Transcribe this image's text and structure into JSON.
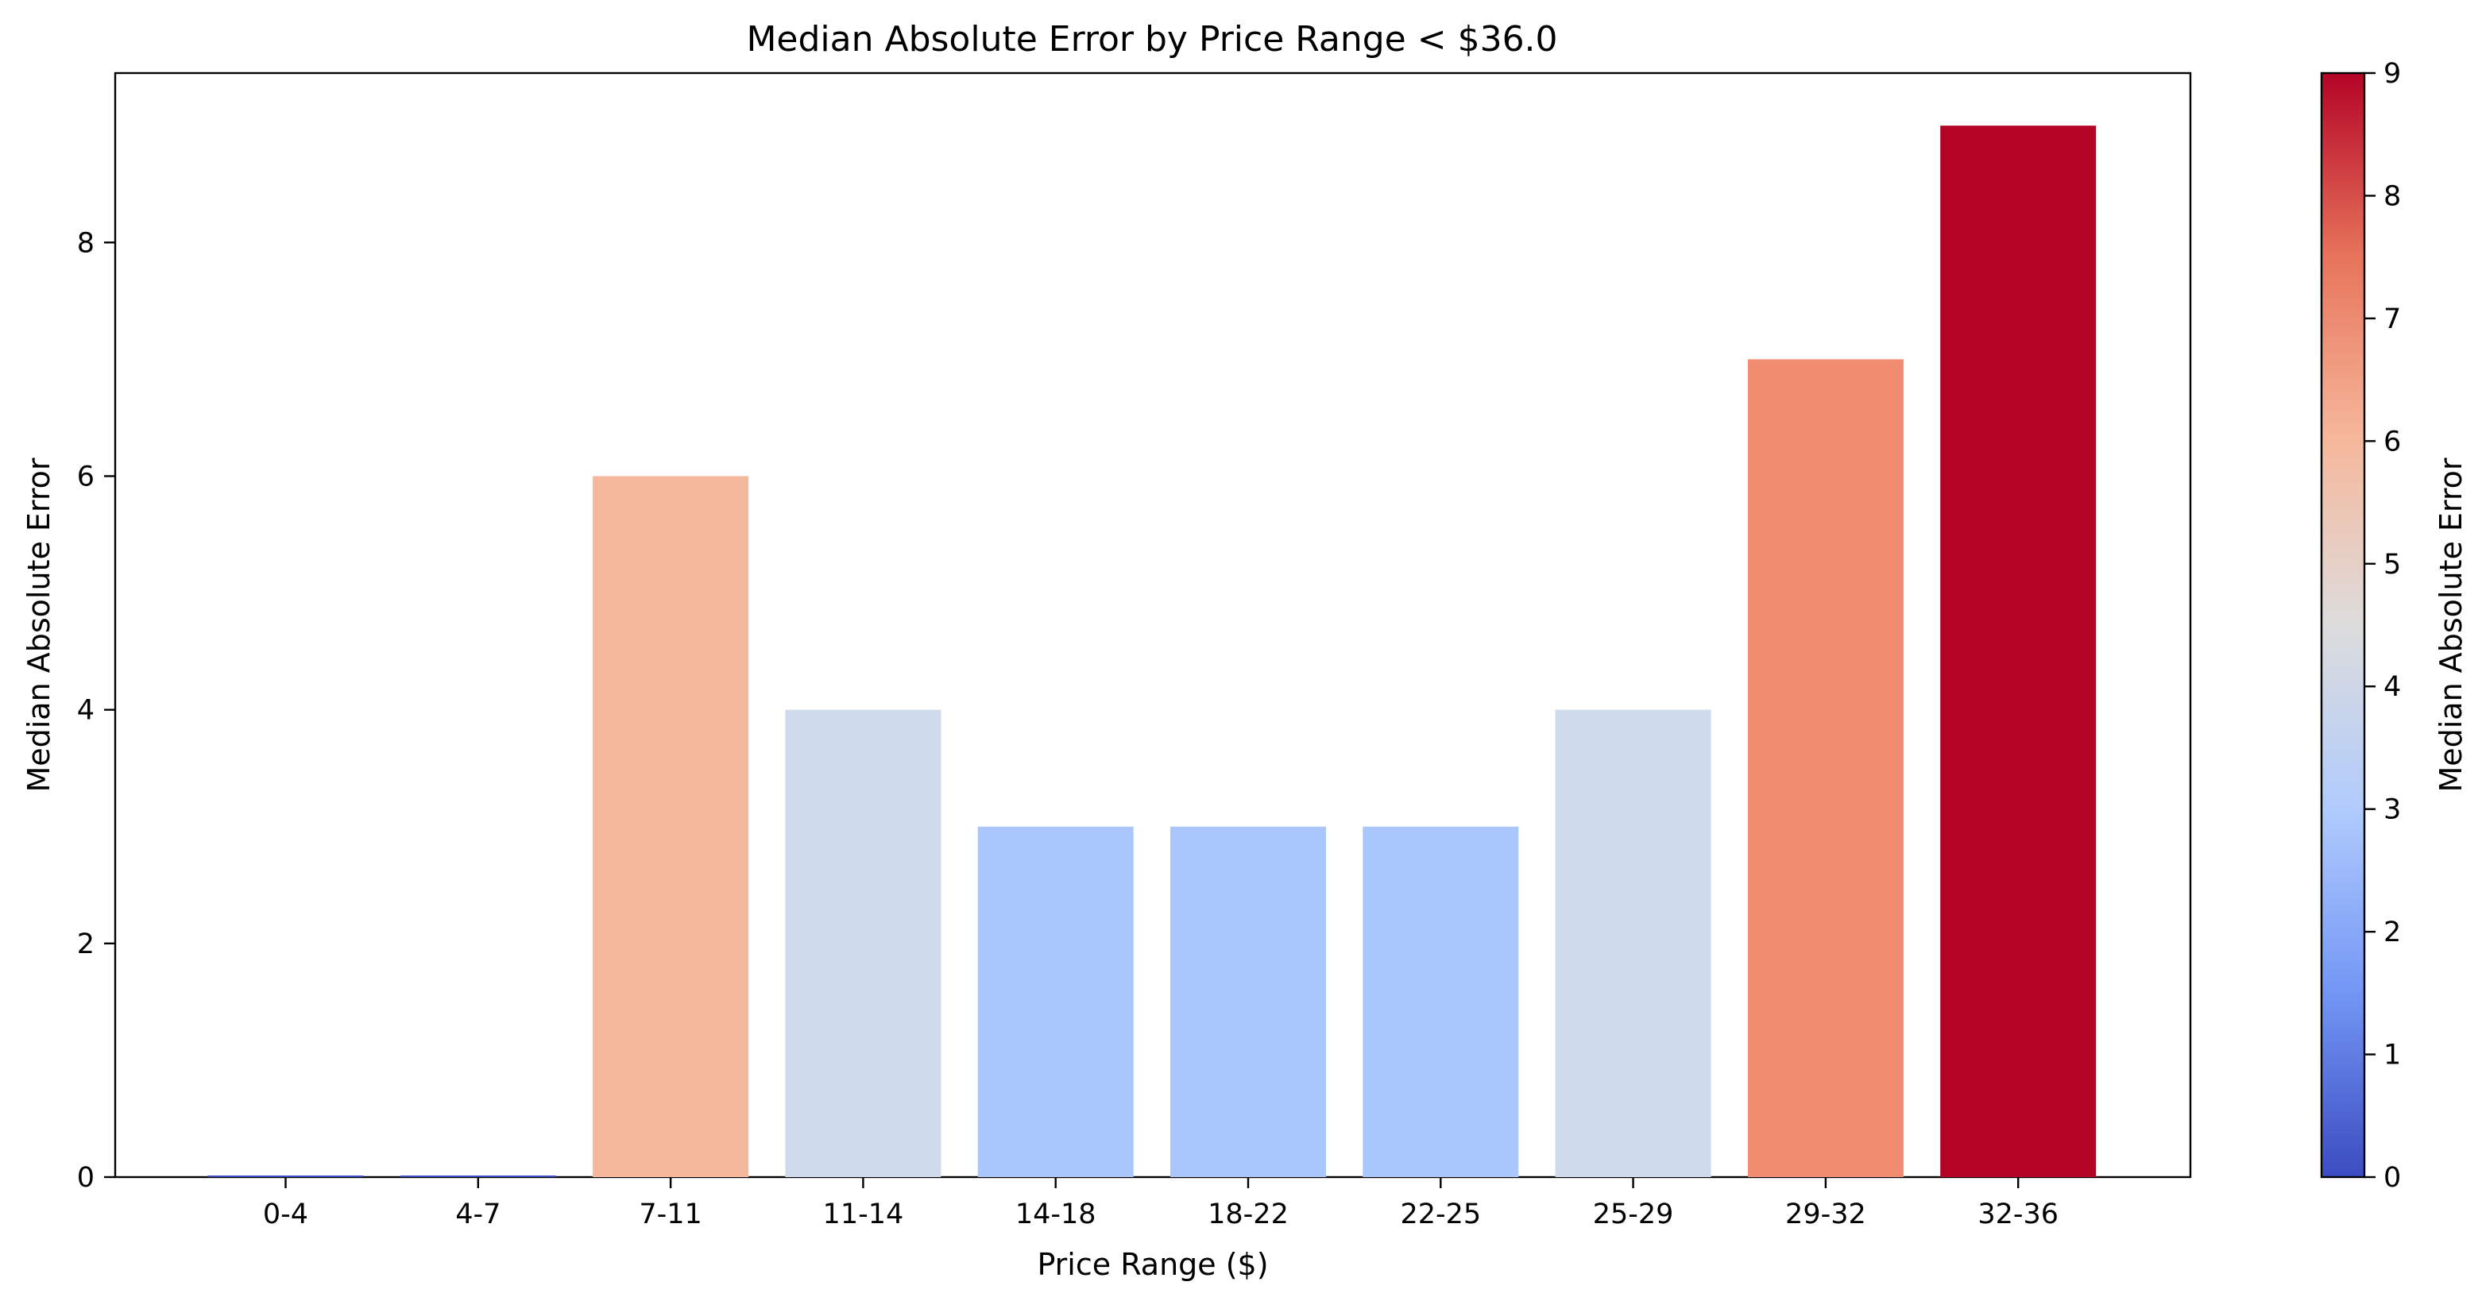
{
  "chart_data": {
    "type": "bar",
    "title": "Median Absolute Error by Price Range < $36.0",
    "xlabel": "Price Range ($)",
    "ylabel": "Median Absolute Error",
    "categories": [
      "0-4",
      "4-7",
      "7-11",
      "11-14",
      "14-18",
      "18-22",
      "22-25",
      "25-29",
      "29-32",
      "32-36"
    ],
    "values": [
      0,
      0,
      6,
      4,
      3,
      3,
      3,
      4,
      7,
      9
    ],
    "bar_colors": [
      "#3b4cc0",
      "#3b4cc0",
      "#f6b89c",
      "#cfdbed",
      "#aac7fd",
      "#aac7fd",
      "#aac7fd",
      "#cfdbed",
      "#f08c6f",
      "#b40426"
    ],
    "ylim": [
      0,
      9.45
    ],
    "yticks": [
      0,
      2,
      4,
      6,
      8
    ],
    "grid": false,
    "colorbar": {
      "label": "Median Absolute Error",
      "colormap": "coolwarm",
      "range": [
        0,
        9
      ],
      "ticks": [
        0,
        1,
        2,
        3,
        4,
        5,
        6,
        7,
        8,
        9
      ],
      "stops": [
        "#3b4cc0",
        "#7396f5",
        "#b0cbfc",
        "#dddcdc",
        "#f6b89c",
        "#e7745b",
        "#b40426"
      ]
    }
  }
}
